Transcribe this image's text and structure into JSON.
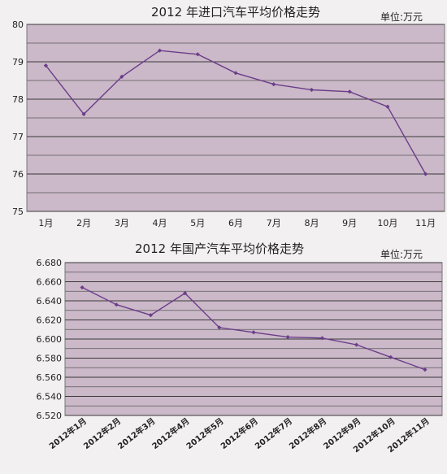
{
  "chart_data": [
    {
      "type": "line",
      "title": "2012 年进口汽车平均价格走势",
      "unit_label": "单位:万元",
      "categories": [
        "1月",
        "2月",
        "3月",
        "4月",
        "5月",
        "6月",
        "7月",
        "8月",
        "9月",
        "10月",
        "11月"
      ],
      "values": [
        78.9,
        77.6,
        78.6,
        79.3,
        79.2,
        78.7,
        78.4,
        78.25,
        78.2,
        77.8,
        76.0
      ],
      "yticks": [
        "75",
        "76",
        "77",
        "78",
        "79",
        "80"
      ],
      "ylim": [
        75,
        80
      ],
      "grid": true,
      "line_color": "#6b3d8a",
      "plot_bg": "#cbb8c8"
    },
    {
      "type": "line",
      "title": "2012 年国产汽车平均价格走势",
      "unit_label": "单位:万元",
      "categories": [
        "2012年1月",
        "2012年2月",
        "2012年3月",
        "2012年4月",
        "2012年5月",
        "2012年6月",
        "2012年7月",
        "2012年8月",
        "2012年9月",
        "2012年10月",
        "2012年11月"
      ],
      "values": [
        6.654,
        6.636,
        6.625,
        6.648,
        6.612,
        6.607,
        6.602,
        6.601,
        6.594,
        6.581,
        6.568
      ],
      "yticks": [
        "6.520",
        "6.540",
        "6.560",
        "6.580",
        "6.600",
        "6.620",
        "6.640",
        "6.660",
        "6.680"
      ],
      "ylim": [
        6.52,
        6.68
      ],
      "grid": true,
      "line_color": "#6b3d8a",
      "plot_bg": "#cbb8c8"
    }
  ]
}
